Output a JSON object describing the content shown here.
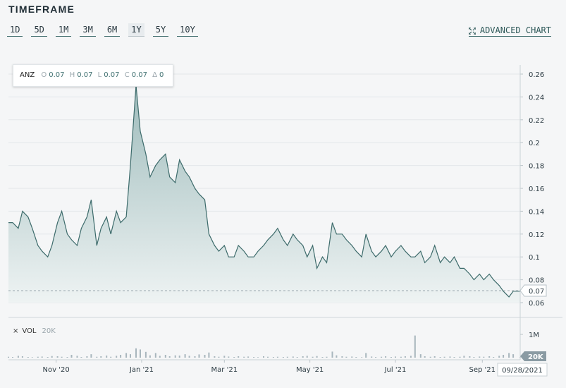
{
  "header": {
    "title": "TIMEFRAME"
  },
  "timeframes": [
    "1D",
    "5D",
    "1M",
    "3M",
    "6M",
    "1Y",
    "5Y",
    "10Y"
  ],
  "active_timeframe": "1Y",
  "advanced_chart": {
    "label": "ADVANCED CHART",
    "icon": "expand-icon"
  },
  "tooltip": {
    "symbol": "ANZ",
    "o_label": "O",
    "o_value": "0.07",
    "h_label": "H",
    "h_value": "0.07",
    "l_label": "L",
    "l_value": "0.07",
    "c_label": "C",
    "c_value": "0.07",
    "d_label": "Δ",
    "d_value": "0"
  },
  "volume_legend": {
    "close_icon": "×",
    "label": "VOL",
    "value": "20K"
  },
  "colors": {
    "line": "#3d6b6b",
    "area_top": "#9fbcbc",
    "area_bottom": "#eef3f3",
    "volume_bar": "#a8b6bd",
    "grid": "#e3e7ea",
    "last_price_bg": "#8a9ba3"
  },
  "chart_data": {
    "type": "area",
    "price_axis_ticks": [
      "0.26",
      "0.24",
      "0.22",
      "0.2",
      "0.18",
      "0.16",
      "0.14",
      "0.12",
      "0.1",
      "0.08",
      "0.06"
    ],
    "volume_axis_ticks": [
      "1M"
    ],
    "x_tick_labels": [
      "Nov '20",
      "Jan '21",
      "Mar '21",
      "May '21",
      "Jul '21",
      "Sep '21"
    ],
    "last_price_label": "0.07",
    "last_volume_label": "20K",
    "last_date_label": "09/28/2021",
    "ylim": [
      0.06,
      0.26
    ],
    "volume_ylim": [
      0,
      1000000
    ],
    "x": [
      "2020-09-28",
      "2020-10-01",
      "2020-10-05",
      "2020-10-08",
      "2020-10-12",
      "2020-10-15",
      "2020-10-19",
      "2020-10-22",
      "2020-10-26",
      "2020-10-29",
      "2020-11-02",
      "2020-11-05",
      "2020-11-09",
      "2020-11-12",
      "2020-11-16",
      "2020-11-19",
      "2020-11-23",
      "2020-11-26",
      "2020-11-30",
      "2020-12-03",
      "2020-12-07",
      "2020-12-10",
      "2020-12-14",
      "2020-12-17",
      "2020-12-21",
      "2020-12-24",
      "2020-12-28",
      "2020-12-31",
      "2021-01-04",
      "2021-01-07",
      "2021-01-11",
      "2021-01-14",
      "2021-01-18",
      "2021-01-21",
      "2021-01-25",
      "2021-01-28",
      "2021-02-01",
      "2021-02-04",
      "2021-02-08",
      "2021-02-11",
      "2021-02-15",
      "2021-02-18",
      "2021-02-22",
      "2021-02-25",
      "2021-03-01",
      "2021-03-04",
      "2021-03-08",
      "2021-03-11",
      "2021-03-15",
      "2021-03-18",
      "2021-03-22",
      "2021-03-25",
      "2021-03-29",
      "2021-04-01",
      "2021-04-05",
      "2021-04-08",
      "2021-04-12",
      "2021-04-15",
      "2021-04-19",
      "2021-04-22",
      "2021-04-26",
      "2021-04-29",
      "2021-05-03",
      "2021-05-06",
      "2021-05-10",
      "2021-05-13",
      "2021-05-17",
      "2021-05-20",
      "2021-05-24",
      "2021-05-27",
      "2021-05-31",
      "2021-06-03",
      "2021-06-07",
      "2021-06-10",
      "2021-06-14",
      "2021-06-17",
      "2021-06-21",
      "2021-06-24",
      "2021-06-28",
      "2021-07-01",
      "2021-07-05",
      "2021-07-08",
      "2021-07-12",
      "2021-07-15",
      "2021-07-19",
      "2021-07-22",
      "2021-07-26",
      "2021-07-29",
      "2021-08-02",
      "2021-08-05",
      "2021-08-09",
      "2021-08-12",
      "2021-08-16",
      "2021-08-19",
      "2021-08-23",
      "2021-08-26",
      "2021-08-30",
      "2021-09-02",
      "2021-09-06",
      "2021-09-09",
      "2021-09-13",
      "2021-09-16",
      "2021-09-20",
      "2021-09-23",
      "2021-09-28"
    ],
    "series": [
      {
        "values": [
          0.13,
          0.13,
          0.125,
          0.14,
          0.135,
          0.125,
          0.11,
          0.105,
          0.1,
          0.11,
          0.13,
          0.14,
          0.12,
          0.115,
          0.11,
          0.125,
          0.135,
          0.15,
          0.11,
          0.125,
          0.135,
          0.12,
          0.14,
          0.13,
          0.135,
          0.18,
          0.25,
          0.21,
          0.19,
          0.17,
          0.18,
          0.185,
          0.19,
          0.17,
          0.165,
          0.185,
          0.175,
          0.17,
          0.16,
          0.155,
          0.15,
          0.12,
          0.11,
          0.105,
          0.11,
          0.1,
          0.1,
          0.11,
          0.105,
          0.1,
          0.1,
          0.105,
          0.11,
          0.115,
          0.12,
          0.125,
          0.115,
          0.11,
          0.12,
          0.115,
          0.11,
          0.1,
          0.11,
          0.09,
          0.1,
          0.095,
          0.13,
          0.12,
          0.12,
          0.115,
          0.11,
          0.105,
          0.1,
          0.12,
          0.105,
          0.1,
          0.105,
          0.11,
          0.1,
          0.105,
          0.11,
          0.105,
          0.1,
          0.1,
          0.105,
          0.095,
          0.1,
          0.11,
          0.095,
          0.1,
          0.095,
          0.1,
          0.09,
          0.09,
          0.085,
          0.08,
          0.085,
          0.08,
          0.085,
          0.08,
          0.075,
          0.07,
          0.065,
          0.07,
          0.07
        ]
      }
    ],
    "volume": [
      40000,
      30000,
      80000,
      60000,
      30000,
      20000,
      40000,
      50000,
      30000,
      70000,
      60000,
      40000,
      30000,
      120000,
      80000,
      30000,
      60000,
      150000,
      40000,
      60000,
      90000,
      40000,
      80000,
      120000,
      200000,
      150000,
      400000,
      350000,
      250000,
      100000,
      200000,
      80000,
      120000,
      60000,
      100000,
      90000,
      150000,
      80000,
      60000,
      140000,
      120000,
      220000,
      60000,
      40000,
      80000,
      50000,
      30000,
      60000,
      40000,
      50000,
      30000,
      20000,
      60000,
      40000,
      30000,
      40000,
      30000,
      40000,
      50000,
      30000,
      60000,
      80000,
      40000,
      70000,
      30000,
      40000,
      260000,
      100000,
      60000,
      40000,
      50000,
      30000,
      20000,
      200000,
      50000,
      30000,
      40000,
      60000,
      30000,
      50000,
      40000,
      60000,
      80000,
      950000,
      150000,
      60000,
      40000,
      60000,
      30000,
      40000,
      50000,
      30000,
      40000,
      80000,
      60000,
      30000,
      50000,
      40000,
      60000,
      30000,
      80000,
      120000,
      200000,
      150000,
      20000
    ]
  }
}
